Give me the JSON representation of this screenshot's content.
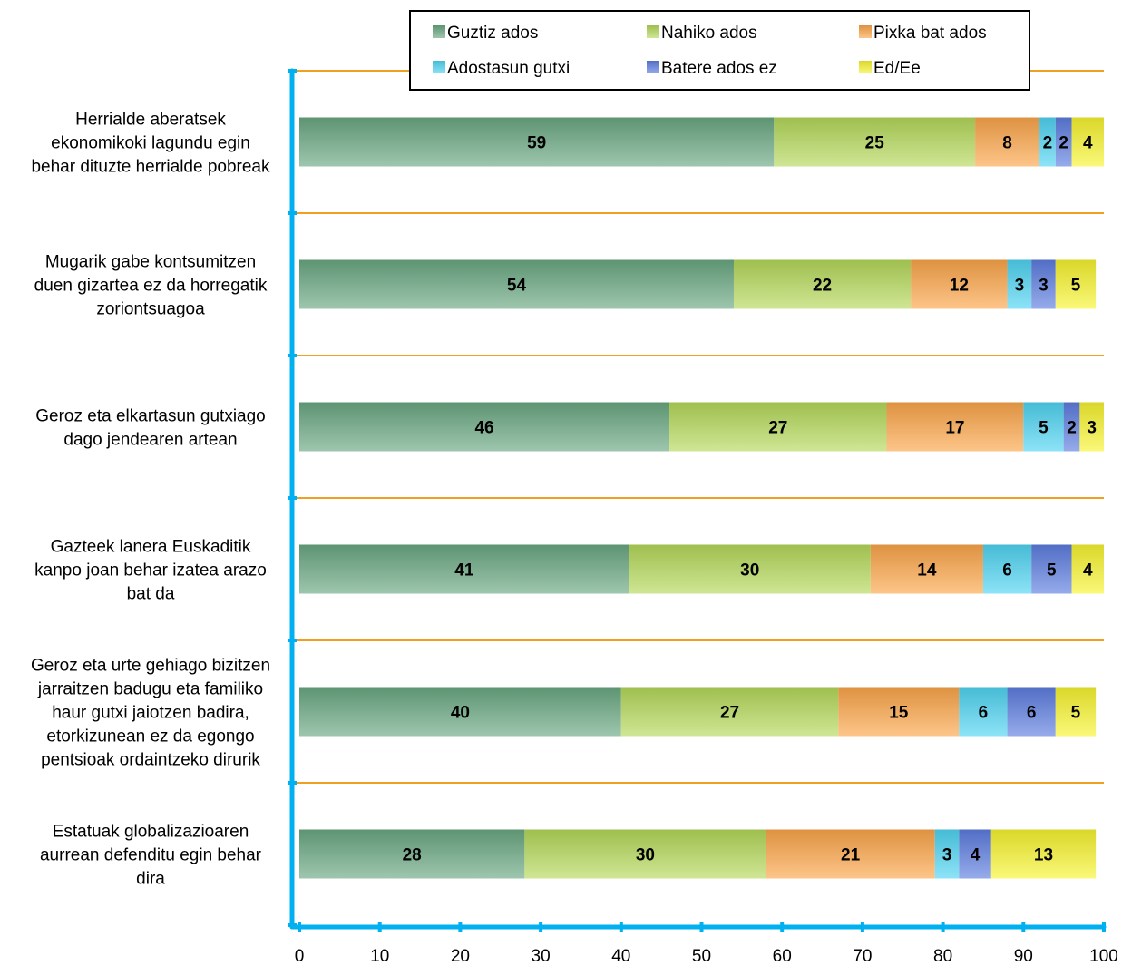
{
  "chart_data": {
    "type": "bar",
    "orientation": "horizontal",
    "stacked": true,
    "categories": [
      "Herrialde aberatsek ekonomikoki lagundu egin behar dituzte herrialde pobreak",
      "Mugarik gabe kontsumitzen duen gizartea ez da horregatik zoriontsuagoa",
      "Geroz eta elkartasun gutxiago dago jendearen artean",
      "Gazteek lanera Euskaditik kanpo joan behar izatea arazo bat da",
      "Geroz eta urte gehiago bizitzen jarraitzen badugu eta familiko haur gutxi jaiotzen badira, etorkizunean ez da egongo pentsioak ordaintzeko dirurik",
      "Estatuak globalizazioaren aurrean defenditu egin behar dira"
    ],
    "category_lines": [
      [
        "Herrialde aberatsek",
        "ekonomikoki lagundu egin",
        "behar dituzte herrialde pobreak"
      ],
      [
        "Mugarik gabe kontsumitzen",
        "duen gizartea ez da horregatik",
        "zoriontsuagoa"
      ],
      [
        "Geroz eta elkartasun gutxiago",
        "dago jendearen artean"
      ],
      [
        "Gazteek lanera Euskaditik",
        "kanpo joan behar izatea arazo",
        "bat da"
      ],
      [
        "Geroz eta urte gehiago bizitzen",
        "jarraitzen badugu eta familiko",
        "haur gutxi jaiotzen badira,",
        "etorkizunean ez da egongo",
        "pentsioak ordaintzeko dirurik"
      ],
      [
        "Estatuak globalizazioaren",
        "aurrean defenditu egin behar",
        "dira"
      ]
    ],
    "series": [
      {
        "name": "Guztiz ados",
        "color": "#6aa882",
        "values": [
          59,
          54,
          46,
          41,
          40,
          28
        ]
      },
      {
        "name": "Nahiko ados",
        "color": "#b5d95a",
        "values": [
          25,
          22,
          27,
          30,
          27,
          30
        ]
      },
      {
        "name": "Pixka bat ados",
        "color": "#fca64a",
        "values": [
          8,
          12,
          17,
          14,
          15,
          21
        ]
      },
      {
        "name": "Adostasun gutxi",
        "color": "#4fd4f2",
        "values": [
          2,
          3,
          5,
          6,
          6,
          3
        ]
      },
      {
        "name": "Batere ados ez",
        "color": "#5d7de0",
        "values": [
          2,
          3,
          2,
          5,
          6,
          4
        ]
      },
      {
        "name": "Ed/Ee",
        "color": "#f8f430",
        "values": [
          4,
          5,
          3,
          4,
          5,
          13
        ]
      }
    ],
    "xlim": [
      0,
      100
    ],
    "xticks": [
      0,
      10,
      20,
      30,
      40,
      50,
      60,
      70,
      80,
      90,
      100
    ],
    "xlabel": "",
    "ylabel": "",
    "title": "",
    "legend_position": "top",
    "axis_color": "#00b0f0",
    "gridline_color": "#f0a020"
  }
}
